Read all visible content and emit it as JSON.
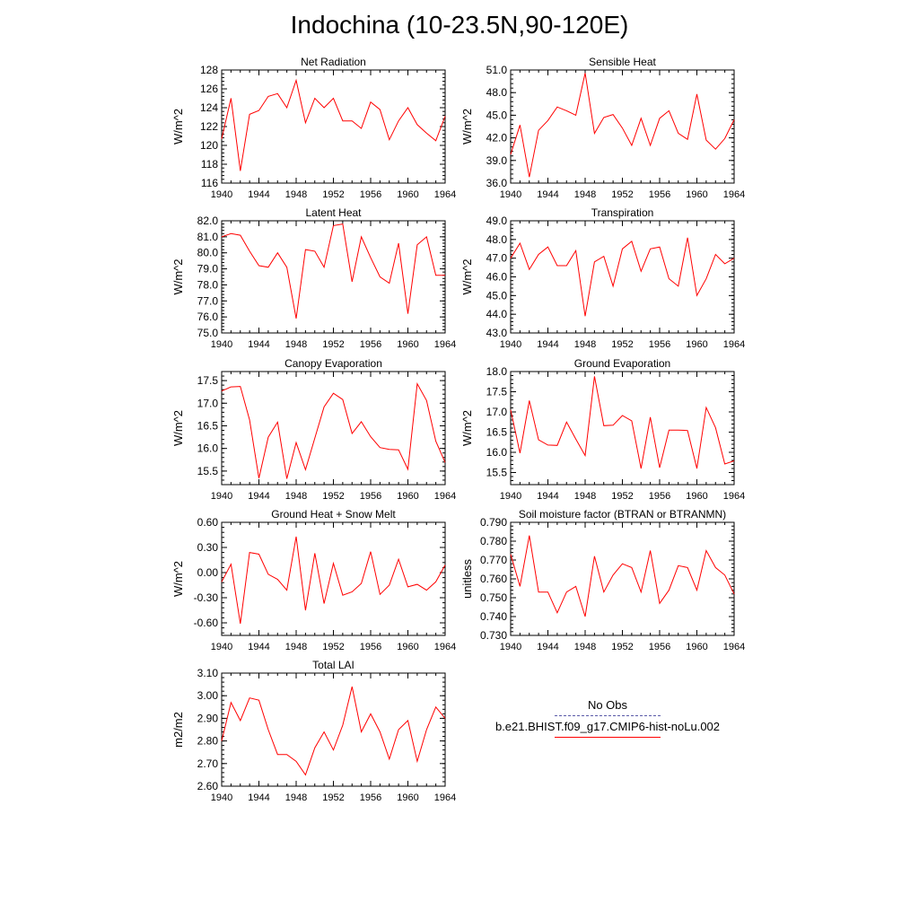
{
  "title": "Indochina (10-23.5N,90-120E)",
  "colors": {
    "model": "#ff0000",
    "obs": "#5a5aa8",
    "axis": "#000000"
  },
  "legend": {
    "obs_label": "No Obs",
    "model_label": "b.e21.BHIST.f09_g17.CMIP6-hist-noLu.002"
  },
  "chart_data": [
    {
      "type": "line",
      "title": "Net Radiation",
      "ylabel": "W/m^2",
      "xlabel": "",
      "xlim": [
        1940,
        1964
      ],
      "ylim": [
        116,
        128
      ],
      "x_ticks": [
        1940,
        1944,
        1948,
        1952,
        1956,
        1960,
        1964
      ],
      "y_ticks": [
        "116",
        "118",
        "120",
        "122",
        "124",
        "126",
        "128"
      ],
      "x": [
        1940,
        1941,
        1942,
        1943,
        1944,
        1945,
        1946,
        1947,
        1948,
        1949,
        1950,
        1951,
        1952,
        1953,
        1954,
        1955,
        1956,
        1957,
        1958,
        1959,
        1960,
        1961,
        1962,
        1963,
        1964
      ],
      "series": [
        {
          "values": [
            120.7,
            125.0,
            117.3,
            123.3,
            123.7,
            125.2,
            125.5,
            124.0,
            126.9,
            122.4,
            125.0,
            124.0,
            125.0,
            122.6,
            122.6,
            121.8,
            124.6,
            123.8,
            120.6,
            122.6,
            124.0,
            122.2,
            121.3,
            120.5,
            123.1
          ]
        }
      ]
    },
    {
      "type": "line",
      "title": "Sensible Heat",
      "ylabel": "W/m^2",
      "xlabel": "",
      "xlim": [
        1940,
        1964
      ],
      "ylim": [
        36.0,
        51.0
      ],
      "x_ticks": [
        1940,
        1944,
        1948,
        1952,
        1956,
        1960,
        1964
      ],
      "y_ticks": [
        "36.0",
        "39.0",
        "42.0",
        "45.0",
        "48.0",
        "51.0"
      ],
      "x": [
        1940,
        1941,
        1942,
        1943,
        1944,
        1945,
        1946,
        1947,
        1948,
        1949,
        1950,
        1951,
        1952,
        1953,
        1954,
        1955,
        1956,
        1957,
        1958,
        1959,
        1960,
        1961,
        1962,
        1963,
        1964
      ],
      "series": [
        {
          "values": [
            39.8,
            43.7,
            36.8,
            43.0,
            44.3,
            46.1,
            45.6,
            45.0,
            50.6,
            42.6,
            44.7,
            45.1,
            43.3,
            41.0,
            44.6,
            41.0,
            44.6,
            45.6,
            42.6,
            41.8,
            47.8,
            41.7,
            40.5,
            41.9,
            44.4
          ]
        }
      ]
    },
    {
      "type": "line",
      "title": "Latent Heat",
      "ylabel": "W/m^2",
      "xlabel": "",
      "xlim": [
        1940,
        1964
      ],
      "ylim": [
        75.0,
        82.0
      ],
      "x_ticks": [
        1940,
        1944,
        1948,
        1952,
        1956,
        1960,
        1964
      ],
      "y_ticks": [
        "75.0",
        "76.0",
        "77.0",
        "78.0",
        "79.0",
        "80.0",
        "81.0",
        "82.0"
      ],
      "x": [
        1940,
        1941,
        1942,
        1943,
        1944,
        1945,
        1946,
        1947,
        1948,
        1949,
        1950,
        1951,
        1952,
        1953,
        1954,
        1955,
        1956,
        1957,
        1958,
        1959,
        1960,
        1961,
        1962,
        1963,
        1964
      ],
      "series": [
        {
          "values": [
            81.0,
            81.2,
            81.1,
            80.1,
            79.2,
            79.1,
            80.0,
            79.1,
            75.9,
            80.2,
            80.1,
            79.1,
            81.7,
            81.8,
            78.2,
            81.0,
            79.7,
            78.5,
            78.1,
            80.6,
            76.2,
            80.5,
            81.0,
            78.6,
            78.6
          ]
        }
      ]
    },
    {
      "type": "line",
      "title": "Transpiration",
      "ylabel": "W/m^2",
      "xlabel": "",
      "xlim": [
        1940,
        1964
      ],
      "ylim": [
        43.0,
        49.0
      ],
      "x_ticks": [
        1940,
        1944,
        1948,
        1952,
        1956,
        1960,
        1964
      ],
      "y_ticks": [
        "43.0",
        "44.0",
        "45.0",
        "46.0",
        "47.0",
        "48.0",
        "49.0"
      ],
      "x": [
        1940,
        1941,
        1942,
        1943,
        1944,
        1945,
        1946,
        1947,
        1948,
        1949,
        1950,
        1951,
        1952,
        1953,
        1954,
        1955,
        1956,
        1957,
        1958,
        1959,
        1960,
        1961,
        1962,
        1963,
        1964
      ],
      "series": [
        {
          "values": [
            47.0,
            47.8,
            46.4,
            47.2,
            47.6,
            46.6,
            46.6,
            47.4,
            43.9,
            46.8,
            47.1,
            45.5,
            47.5,
            47.9,
            46.3,
            47.5,
            47.6,
            45.9,
            45.5,
            48.1,
            45.0,
            45.9,
            47.2,
            46.7,
            47.0
          ]
        }
      ]
    },
    {
      "type": "line",
      "title": "Canopy Evaporation",
      "ylabel": "W/m^2",
      "xlabel": "",
      "xlim": [
        1940,
        1964
      ],
      "ylim": [
        15.2,
        17.7
      ],
      "x_ticks": [
        1940,
        1944,
        1948,
        1952,
        1956,
        1960,
        1964
      ],
      "y_ticks": [
        "15.5",
        "16.0",
        "16.5",
        "17.0",
        "17.5"
      ],
      "x": [
        1940,
        1941,
        1942,
        1943,
        1944,
        1945,
        1946,
        1947,
        1948,
        1949,
        1950,
        1951,
        1952,
        1953,
        1954,
        1955,
        1956,
        1957,
        1958,
        1959,
        1960,
        1961,
        1962,
        1963,
        1964
      ],
      "series": [
        {
          "values": [
            17.27,
            17.36,
            17.37,
            16.63,
            15.34,
            16.25,
            16.58,
            15.33,
            16.13,
            15.53,
            16.23,
            16.92,
            17.22,
            17.08,
            16.33,
            16.59,
            16.26,
            16.02,
            15.98,
            15.97,
            15.54,
            17.43,
            17.06,
            16.16,
            15.69
          ]
        }
      ]
    },
    {
      "type": "line",
      "title": "Ground Evaporation",
      "ylabel": "W/m^2",
      "xlabel": "",
      "xlim": [
        1940,
        1964
      ],
      "ylim": [
        15.2,
        18.0
      ],
      "x_ticks": [
        1940,
        1944,
        1948,
        1952,
        1956,
        1960,
        1964
      ],
      "y_ticks": [
        "15.5",
        "16.0",
        "16.5",
        "17.0",
        "17.5",
        "18.0"
      ],
      "x": [
        1940,
        1941,
        1942,
        1943,
        1944,
        1945,
        1946,
        1947,
        1948,
        1949,
        1950,
        1951,
        1952,
        1953,
        1954,
        1955,
        1956,
        1957,
        1958,
        1959,
        1960,
        1961,
        1962,
        1963,
        1964
      ],
      "series": [
        {
          "values": [
            17.05,
            15.98,
            17.28,
            16.31,
            16.18,
            16.17,
            16.75,
            16.33,
            15.92,
            17.88,
            16.66,
            16.67,
            16.91,
            16.78,
            15.6,
            16.87,
            15.62,
            16.55,
            16.55,
            16.54,
            15.6,
            17.11,
            16.61,
            15.71,
            15.79
          ]
        }
      ]
    },
    {
      "type": "line",
      "title": "Ground Heat + Snow Melt",
      "ylabel": "W/m^2",
      "xlabel": "",
      "xlim": [
        1940,
        1964
      ],
      "ylim": [
        -0.75,
        0.6
      ],
      "x_ticks": [
        1940,
        1944,
        1948,
        1952,
        1956,
        1960,
        1964
      ],
      "y_ticks": [
        "-0.60",
        "-0.30",
        "0.00",
        "0.30",
        "0.60"
      ],
      "x": [
        1940,
        1941,
        1942,
        1943,
        1944,
        1945,
        1946,
        1947,
        1948,
        1949,
        1950,
        1951,
        1952,
        1953,
        1954,
        1955,
        1956,
        1957,
        1958,
        1959,
        1960,
        1961,
        1962,
        1963,
        1964
      ],
      "series": [
        {
          "values": [
            -0.11,
            0.1,
            -0.61,
            0.24,
            0.22,
            -0.02,
            -0.08,
            -0.21,
            0.43,
            -0.45,
            0.23,
            -0.37,
            0.11,
            -0.27,
            -0.23,
            -0.13,
            0.25,
            -0.26,
            -0.15,
            0.16,
            -0.17,
            -0.14,
            -0.21,
            -0.11,
            0.09
          ]
        }
      ]
    },
    {
      "type": "line",
      "title": "Soil moisture factor (BTRAN or BTRANMN)",
      "ylabel": "unitless",
      "xlabel": "",
      "xlim": [
        1940,
        1964
      ],
      "ylim": [
        0.73,
        0.79
      ],
      "x_ticks": [
        1940,
        1944,
        1948,
        1952,
        1956,
        1960,
        1964
      ],
      "y_ticks": [
        "0.730",
        "0.740",
        "0.750",
        "0.760",
        "0.770",
        "0.780",
        "0.790"
      ],
      "x": [
        1940,
        1941,
        1942,
        1943,
        1944,
        1945,
        1946,
        1947,
        1948,
        1949,
        1950,
        1951,
        1952,
        1953,
        1954,
        1955,
        1956,
        1957,
        1958,
        1959,
        1960,
        1961,
        1962,
        1963,
        1964
      ],
      "series": [
        {
          "values": [
            0.773,
            0.756,
            0.783,
            0.753,
            0.753,
            0.742,
            0.753,
            0.756,
            0.74,
            0.772,
            0.753,
            0.762,
            0.768,
            0.766,
            0.753,
            0.775,
            0.747,
            0.754,
            0.767,
            0.766,
            0.754,
            0.775,
            0.766,
            0.762,
            0.752
          ]
        }
      ]
    },
    {
      "type": "line",
      "title": "Total LAI",
      "ylabel": "m2/m2",
      "xlabel": "",
      "xlim": [
        1940,
        1964
      ],
      "ylim": [
        2.6,
        3.1
      ],
      "x_ticks": [
        1940,
        1944,
        1948,
        1952,
        1956,
        1960,
        1964
      ],
      "y_ticks": [
        "2.60",
        "2.70",
        "2.80",
        "2.90",
        "3.00",
        "3.10"
      ],
      "x": [
        1940,
        1941,
        1942,
        1943,
        1944,
        1945,
        1946,
        1947,
        1948,
        1949,
        1950,
        1951,
        1952,
        1953,
        1954,
        1955,
        1956,
        1957,
        1958,
        1959,
        1960,
        1961,
        1962,
        1963,
        1964
      ],
      "series": [
        {
          "values": [
            2.8,
            2.97,
            2.89,
            2.99,
            2.98,
            2.85,
            2.74,
            2.74,
            2.71,
            2.65,
            2.77,
            2.84,
            2.76,
            2.87,
            3.04,
            2.84,
            2.92,
            2.84,
            2.72,
            2.85,
            2.89,
            2.71,
            2.85,
            2.95,
            2.9
          ]
        }
      ]
    }
  ]
}
